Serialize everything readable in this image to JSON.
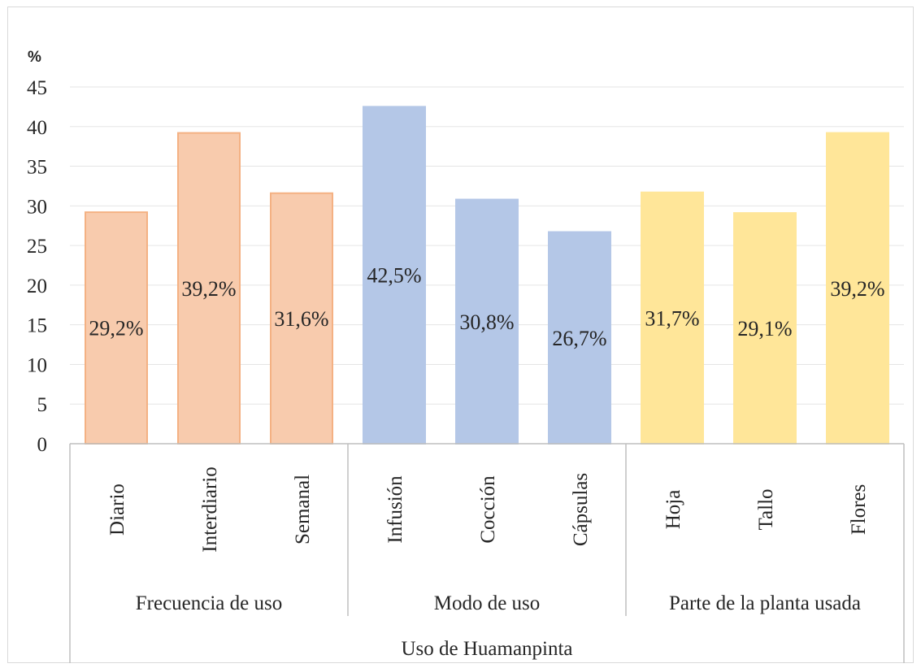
{
  "chart_data": {
    "type": "bar",
    "ylabel": "%",
    "ylim": [
      0,
      45
    ],
    "yticks": [
      "0",
      "5",
      "10",
      "15",
      "20",
      "25",
      "30",
      "35",
      "40",
      "45"
    ],
    "grid": true,
    "supercategory": "Uso de Huamanpinta",
    "groups": [
      {
        "name": "Frecuencia de uso",
        "color": "#f8cbad",
        "stroke": "#f4b183"
      },
      {
        "name": "Modo de uso",
        "color": "#b4c7e7",
        "stroke": "#b4c7e7"
      },
      {
        "name": "Parte de la planta usada",
        "color": "#ffe699",
        "stroke": "#ffe699"
      }
    ],
    "bars": [
      {
        "category": "Diario",
        "group": 0,
        "value": 29.2,
        "label": "29,2%"
      },
      {
        "category": "Interdiario",
        "group": 0,
        "value": 39.2,
        "label": "39,2%"
      },
      {
        "category": "Semanal",
        "group": 0,
        "value": 31.6,
        "label": "31,6%"
      },
      {
        "category": "Infusión",
        "group": 1,
        "value": 42.5,
        "label": "42,5%"
      },
      {
        "category": "Cocción",
        "group": 1,
        "value": 30.8,
        "label": "30,8%"
      },
      {
        "category": "Cápsulas",
        "group": 1,
        "value": 26.7,
        "label": "26,7%"
      },
      {
        "category": "Hoja",
        "group": 2,
        "value": 31.7,
        "label": "31,7%"
      },
      {
        "category": "Tallo",
        "group": 2,
        "value": 29.1,
        "label": "29,1%"
      },
      {
        "category": "Flores",
        "group": 2,
        "value": 39.2,
        "label": "39,2%"
      }
    ]
  }
}
